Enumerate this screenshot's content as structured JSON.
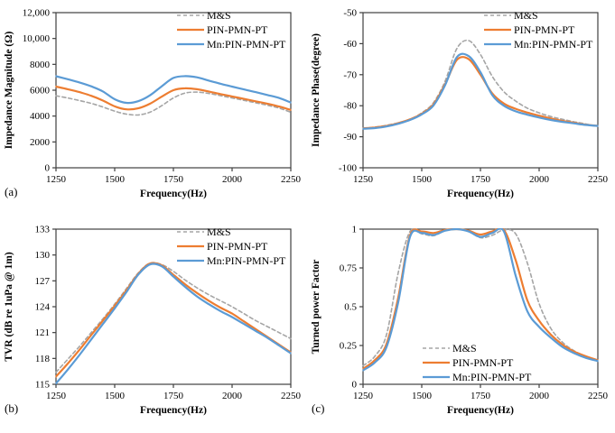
{
  "figure": {
    "background": "#ffffff",
    "axis_color": "#404040",
    "panel_labels": [
      "(a)",
      "",
      "(b)",
      "(c)"
    ]
  },
  "legend": {
    "entries": [
      {
        "label": "M&S",
        "color": "#a5a5a5",
        "style": "dashed"
      },
      {
        "label": "PIN-PMN-PT",
        "color": "#ed7d31",
        "style": "solid"
      },
      {
        "label": "Mn:PIN-PMN-PT",
        "color": "#5b9bd5",
        "style": "solid"
      }
    ]
  },
  "chart_data": [
    {
      "id": "impedance-magnitude",
      "type": "line",
      "panel_label": "(a)",
      "xlabel": "Frequency(Hz)",
      "ylabel": "Impedance Magnitude (Ω)",
      "xlim": [
        1250,
        2250
      ],
      "ylim": [
        0,
        12000
      ],
      "xticks": [
        "1250",
        "1500",
        "1750",
        "2000",
        "2250"
      ],
      "yticks": [
        "0",
        "2000",
        "4000",
        "6000",
        "8000",
        "10,000",
        "12,000"
      ],
      "grid": false,
      "legend_pos": "top-right-inside",
      "x": [
        1250,
        1300,
        1350,
        1400,
        1450,
        1500,
        1550,
        1600,
        1650,
        1700,
        1750,
        1800,
        1850,
        1900,
        1950,
        2000,
        2050,
        2100,
        2150,
        2200,
        2250
      ],
      "series": [
        {
          "name": "M&S",
          "color": "#a5a5a5",
          "dash": "4 3",
          "width": 1.6,
          "values": [
            5570,
            5400,
            5200,
            4980,
            4700,
            4380,
            4150,
            4090,
            4300,
            4800,
            5400,
            5780,
            5850,
            5750,
            5580,
            5400,
            5220,
            5030,
            4840,
            4620,
            4300
          ]
        },
        {
          "name": "PIN-PMN-PT",
          "color": "#ed7d31",
          "dash": null,
          "width": 2.2,
          "values": [
            6280,
            6080,
            5850,
            5570,
            5200,
            4750,
            4520,
            4600,
            4950,
            5500,
            6000,
            6150,
            6080,
            5900,
            5700,
            5520,
            5330,
            5140,
            4960,
            4740,
            4480
          ]
        },
        {
          "name": "Mn:PIN-PMN-PT",
          "color": "#5b9bd5",
          "dash": null,
          "width": 2.2,
          "values": [
            7080,
            6850,
            6600,
            6300,
            5900,
            5300,
            5020,
            5150,
            5600,
            6300,
            6950,
            7090,
            7000,
            6750,
            6500,
            6280,
            6060,
            5850,
            5630,
            5400,
            5050
          ]
        }
      ]
    },
    {
      "id": "impedance-phase",
      "type": "line",
      "panel_label": "",
      "xlabel": "Frequency(Hz)",
      "ylabel": "Impedance Phase(degree)",
      "xlim": [
        1250,
        2250
      ],
      "ylim": [
        -100,
        -50
      ],
      "xticks": [
        "1250",
        "1500",
        "1750",
        "2000",
        "2250"
      ],
      "yticks": [
        "-100",
        "-90",
        "-80",
        "-70",
        "-60",
        "-50"
      ],
      "grid": false,
      "legend_pos": "top-right-inside",
      "x": [
        1250,
        1300,
        1350,
        1400,
        1450,
        1500,
        1550,
        1600,
        1650,
        1700,
        1750,
        1800,
        1850,
        1900,
        1950,
        2000,
        2050,
        2100,
        2150,
        2200,
        2250
      ],
      "series": [
        {
          "name": "M&S",
          "color": "#a5a5a5",
          "dash": "4 3",
          "width": 1.6,
          "values": [
            -87.2,
            -86.9,
            -86.3,
            -85.5,
            -84.4,
            -82.3,
            -79.0,
            -72.0,
            -61.5,
            -59.0,
            -63.5,
            -70.5,
            -75.5,
            -78.5,
            -80.8,
            -82.3,
            -83.5,
            -84.4,
            -85.2,
            -85.9,
            -86.7
          ]
        },
        {
          "name": "PIN-PMN-PT",
          "color": "#ed7d31",
          "dash": null,
          "width": 2.2,
          "values": [
            -87.3,
            -87.0,
            -86.5,
            -85.6,
            -84.4,
            -82.6,
            -79.6,
            -73.0,
            -65.2,
            -65.0,
            -70.0,
            -76.0,
            -79.3,
            -81.0,
            -82.2,
            -83.2,
            -84.1,
            -84.9,
            -85.5,
            -86.1,
            -86.5
          ]
        },
        {
          "name": "Mn:PIN-PMN-PT",
          "color": "#5b9bd5",
          "dash": null,
          "width": 2.2,
          "values": [
            -87.4,
            -87.2,
            -86.7,
            -85.8,
            -84.6,
            -82.8,
            -79.9,
            -73.3,
            -64.3,
            -64.0,
            -69.2,
            -76.5,
            -80.0,
            -81.8,
            -82.9,
            -83.8,
            -84.6,
            -85.2,
            -85.7,
            -86.2,
            -86.5
          ]
        }
      ]
    },
    {
      "id": "tvr",
      "type": "line",
      "panel_label": "(b)",
      "xlabel": "Frequency(Hz)",
      "ylabel": "TVR (dB re 1uPa @ 1m)",
      "xlim": [
        1250,
        2250
      ],
      "ylim": [
        115,
        133
      ],
      "xticks": [
        "1250",
        "1500",
        "1750",
        "2000",
        "2250"
      ],
      "yticks": [
        "115",
        "118",
        "121",
        "124",
        "127",
        "130",
        "133"
      ],
      "grid": false,
      "legend_pos": "top-right-inside",
      "x": [
        1250,
        1300,
        1350,
        1400,
        1450,
        1500,
        1550,
        1600,
        1650,
        1700,
        1750,
        1800,
        1850,
        1900,
        1950,
        2000,
        2050,
        2100,
        2150,
        2200,
        2250
      ],
      "series": [
        {
          "name": "M&S",
          "color": "#a5a5a5",
          "dash": "4 3",
          "width": 1.6,
          "values": [
            116.4,
            117.9,
            119.4,
            121.0,
            122.6,
            124.3,
            126.1,
            127.9,
            129.05,
            128.9,
            128.1,
            127.1,
            126.2,
            125.4,
            124.7,
            124.0,
            123.2,
            122.4,
            121.7,
            121.0,
            120.3
          ]
        },
        {
          "name": "PIN-PMN-PT",
          "color": "#ed7d31",
          "dash": null,
          "width": 2.2,
          "values": [
            115.9,
            117.4,
            119.0,
            120.7,
            122.4,
            124.1,
            125.9,
            127.8,
            129.0,
            128.8,
            127.7,
            126.6,
            125.6,
            124.7,
            123.9,
            123.2,
            122.3,
            121.4,
            120.5,
            119.6,
            118.7
          ]
        },
        {
          "name": "Mn:PIN-PMN-PT",
          "color": "#5b9bd5",
          "dash": null,
          "width": 2.2,
          "values": [
            115.1,
            116.7,
            118.4,
            120.2,
            122.0,
            123.8,
            125.7,
            127.7,
            128.9,
            128.7,
            127.5,
            126.3,
            125.2,
            124.3,
            123.5,
            122.8,
            122.0,
            121.2,
            120.4,
            119.5,
            118.6
          ]
        }
      ]
    },
    {
      "id": "turned-power-factor",
      "type": "line",
      "panel_label": "(c)",
      "xlabel": "Frequency(Hz)",
      "ylabel": "Turned power Factor",
      "xlim": [
        1250,
        2250
      ],
      "ylim": [
        0,
        1
      ],
      "xticks": [
        "1250",
        "1500",
        "1750",
        "2000",
        "2250"
      ],
      "yticks": [
        "0",
        "0.25",
        "0.5",
        "0.75",
        "1"
      ],
      "grid": false,
      "legend_pos": "bottom-center-inside",
      "x": [
        1250,
        1300,
        1350,
        1400,
        1450,
        1500,
        1550,
        1600,
        1650,
        1700,
        1750,
        1800,
        1850,
        1900,
        1950,
        2000,
        2050,
        2100,
        2150,
        2200,
        2250
      ],
      "series": [
        {
          "name": "M&S",
          "color": "#a5a5a5",
          "dash": "4 3",
          "width": 1.6,
          "values": [
            0.12,
            0.18,
            0.32,
            0.72,
            0.985,
            0.97,
            0.958,
            0.99,
            1.0,
            0.985,
            0.945,
            0.96,
            0.995,
            0.97,
            0.78,
            0.52,
            0.36,
            0.27,
            0.215,
            0.18,
            0.15
          ]
        },
        {
          "name": "PIN-PMN-PT",
          "color": "#ed7d31",
          "dash": null,
          "width": 2.2,
          "values": [
            0.1,
            0.155,
            0.26,
            0.56,
            0.96,
            0.985,
            0.975,
            0.995,
            1.0,
            0.99,
            0.965,
            0.985,
            0.995,
            0.8,
            0.54,
            0.41,
            0.32,
            0.255,
            0.21,
            0.18,
            0.155
          ]
        },
        {
          "name": "Mn:PIN-PMN-PT",
          "color": "#5b9bd5",
          "dash": null,
          "width": 2.2,
          "values": [
            0.09,
            0.14,
            0.24,
            0.53,
            0.95,
            0.975,
            0.962,
            0.99,
            1.0,
            0.985,
            0.95,
            0.975,
            0.985,
            0.7,
            0.47,
            0.37,
            0.3,
            0.24,
            0.2,
            0.17,
            0.15
          ]
        }
      ]
    }
  ]
}
